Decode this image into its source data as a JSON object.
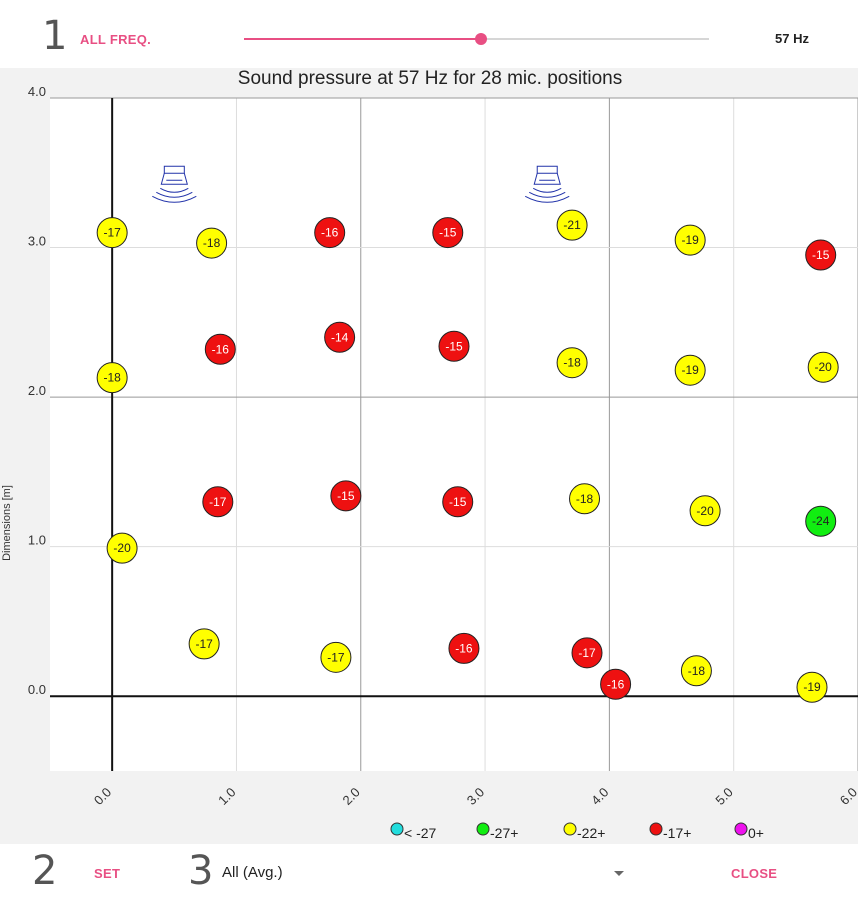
{
  "header": {
    "step1": "1",
    "all_freq_label": "ALL FREQ.",
    "slider_fraction": 0.51,
    "freq_readout": "57 Hz"
  },
  "footer": {
    "step2": "2",
    "set_label": "SET",
    "step3": "3",
    "mic_select_value": "All (Avg.)",
    "close_label": "CLOSE"
  },
  "chart_data": {
    "type": "scatter",
    "title": "Sound pressure at 57 Hz for 28 mic. positions",
    "ylabel": "Dimensions [m]",
    "xlabel": "",
    "xlim": [
      -0.5,
      6.0
    ],
    "ylim": [
      -0.5,
      4.0
    ],
    "x_ticks": [
      "0.0",
      "1.0",
      "2.0",
      "3.0",
      "4.0",
      "5.0",
      "6.0"
    ],
    "y_ticks": [
      "0.0",
      "1.0",
      "2.0",
      "3.0",
      "4.0"
    ],
    "x_tick_values": [
      0,
      1,
      2,
      3,
      4,
      5,
      6
    ],
    "y_tick_values": [
      0,
      1,
      2,
      3,
      4
    ],
    "grid": true,
    "speakers": [
      {
        "x": 0.5,
        "y": 3.45,
        "icon": "speaker-icon"
      },
      {
        "x": 3.5,
        "y": 3.45,
        "icon": "speaker-icon"
      }
    ],
    "points": [
      {
        "x": 0.0,
        "y": 3.1,
        "value": "-17",
        "color": "#ffff00",
        "text": "#222222"
      },
      {
        "x": 0.8,
        "y": 3.03,
        "value": "-18",
        "color": "#ffff00",
        "text": "#222222"
      },
      {
        "x": 1.75,
        "y": 3.1,
        "value": "-16",
        "color": "#ee1111",
        "text": "#ffffff"
      },
      {
        "x": 2.7,
        "y": 3.1,
        "value": "-15",
        "color": "#ee1111",
        "text": "#ffffff"
      },
      {
        "x": 3.7,
        "y": 3.15,
        "value": "-21",
        "color": "#ffff00",
        "text": "#222222"
      },
      {
        "x": 4.65,
        "y": 3.05,
        "value": "-19",
        "color": "#ffff00",
        "text": "#222222"
      },
      {
        "x": 5.7,
        "y": 2.95,
        "value": "-15",
        "color": "#ee1111",
        "text": "#ffffff"
      },
      {
        "x": 0.0,
        "y": 2.13,
        "value": "-18",
        "color": "#ffff00",
        "text": "#222222"
      },
      {
        "x": 0.87,
        "y": 2.32,
        "value": "-16",
        "color": "#ee1111",
        "text": "#ffffff"
      },
      {
        "x": 1.83,
        "y": 2.4,
        "value": "-14",
        "color": "#ee1111",
        "text": "#ffffff"
      },
      {
        "x": 2.75,
        "y": 2.34,
        "value": "-15",
        "color": "#ee1111",
        "text": "#ffffff"
      },
      {
        "x": 3.7,
        "y": 2.23,
        "value": "-18",
        "color": "#ffff00",
        "text": "#222222"
      },
      {
        "x": 4.65,
        "y": 2.18,
        "value": "-19",
        "color": "#ffff00",
        "text": "#222222"
      },
      {
        "x": 5.72,
        "y": 2.2,
        "value": "-20",
        "color": "#ffff00",
        "text": "#222222"
      },
      {
        "x": 0.85,
        "y": 1.3,
        "value": "-17",
        "color": "#ee1111",
        "text": "#ffffff"
      },
      {
        "x": 1.88,
        "y": 1.34,
        "value": "-15",
        "color": "#ee1111",
        "text": "#ffffff"
      },
      {
        "x": 2.78,
        "y": 1.3,
        "value": "-15",
        "color": "#ee1111",
        "text": "#ffffff"
      },
      {
        "x": 3.8,
        "y": 1.32,
        "value": "-18",
        "color": "#ffff00",
        "text": "#222222"
      },
      {
        "x": 4.77,
        "y": 1.24,
        "value": "-20",
        "color": "#ffff00",
        "text": "#222222"
      },
      {
        "x": 5.7,
        "y": 1.17,
        "value": "-24",
        "color": "#11ee11",
        "text": "#222222"
      },
      {
        "x": 0.08,
        "y": 0.99,
        "value": "-20",
        "color": "#ffff00",
        "text": "#222222"
      },
      {
        "x": 0.74,
        "y": 0.35,
        "value": "-17",
        "color": "#ffff00",
        "text": "#222222"
      },
      {
        "x": 1.8,
        "y": 0.26,
        "value": "-17",
        "color": "#ffff00",
        "text": "#222222"
      },
      {
        "x": 2.83,
        "y": 0.32,
        "value": "-16",
        "color": "#ee1111",
        "text": "#ffffff"
      },
      {
        "x": 3.82,
        "y": 0.29,
        "value": "-17",
        "color": "#ee1111",
        "text": "#ffffff"
      },
      {
        "x": 4.05,
        "y": 0.08,
        "value": "-16",
        "color": "#ee1111",
        "text": "#ffffff"
      },
      {
        "x": 4.7,
        "y": 0.17,
        "value": "-18",
        "color": "#ffff00",
        "text": "#222222"
      },
      {
        "x": 5.63,
        "y": 0.06,
        "value": "-19",
        "color": "#ffff00",
        "text": "#222222"
      }
    ],
    "legend": [
      {
        "label": "< -27",
        "color": "#22dddd"
      },
      {
        "label": "-27+",
        "color": "#11ee11"
      },
      {
        "label": "-22+",
        "color": "#ffff00"
      },
      {
        "label": "-17+",
        "color": "#ee1111"
      },
      {
        "label": "0+",
        "color": "#ee11ee"
      }
    ],
    "legend_placement": "bottom-right"
  }
}
